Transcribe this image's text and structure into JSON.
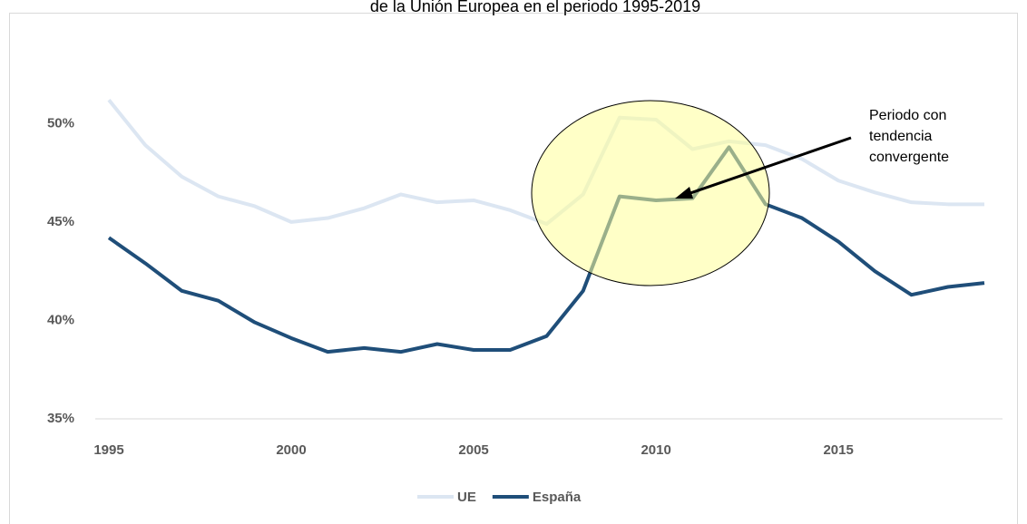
{
  "chart_data": {
    "type": "line",
    "title": "de la Unión Europea en el periodo 1995-2019",
    "x": [
      1995,
      1996,
      1997,
      1998,
      1999,
      2000,
      2001,
      2002,
      2003,
      2004,
      2005,
      2006,
      2007,
      2008,
      2009,
      2010,
      2011,
      2012,
      2013,
      2014,
      2015,
      2016,
      2017,
      2018,
      2019
    ],
    "series": [
      {
        "name": "UE",
        "color": "#dce6f2",
        "values": [
          51.2,
          48.9,
          47.3,
          46.3,
          45.8,
          45.0,
          45.2,
          45.7,
          46.4,
          46.0,
          46.1,
          45.6,
          44.9,
          46.4,
          50.3,
          50.2,
          48.7,
          49.1,
          48.9,
          48.2,
          47.1,
          46.5,
          46.0,
          45.9,
          45.9
        ]
      },
      {
        "name": "España",
        "color": "#1f4e79",
        "values": [
          44.2,
          42.9,
          41.5,
          41.0,
          39.9,
          39.1,
          38.4,
          38.6,
          38.4,
          38.8,
          38.5,
          38.5,
          39.2,
          41.5,
          46.3,
          46.1,
          46.2,
          48.8,
          45.9,
          45.2,
          44.0,
          42.5,
          41.3,
          41.7,
          41.9
        ]
      }
    ],
    "xlim": [
      1995,
      2019
    ],
    "xticks": [
      1995,
      2000,
      2005,
      2010,
      2015
    ],
    "ylim": [
      35,
      52.5
    ],
    "yticks": [
      {
        "value": 35,
        "label": "35%"
      },
      {
        "value": 40,
        "label": "40%"
      },
      {
        "value": 45,
        "label": "45%"
      },
      {
        "value": 50,
        "label": "50%"
      }
    ],
    "annotation": [
      "Periodo con",
      "tendencia",
      "convergente"
    ],
    "legend": "bottom"
  }
}
